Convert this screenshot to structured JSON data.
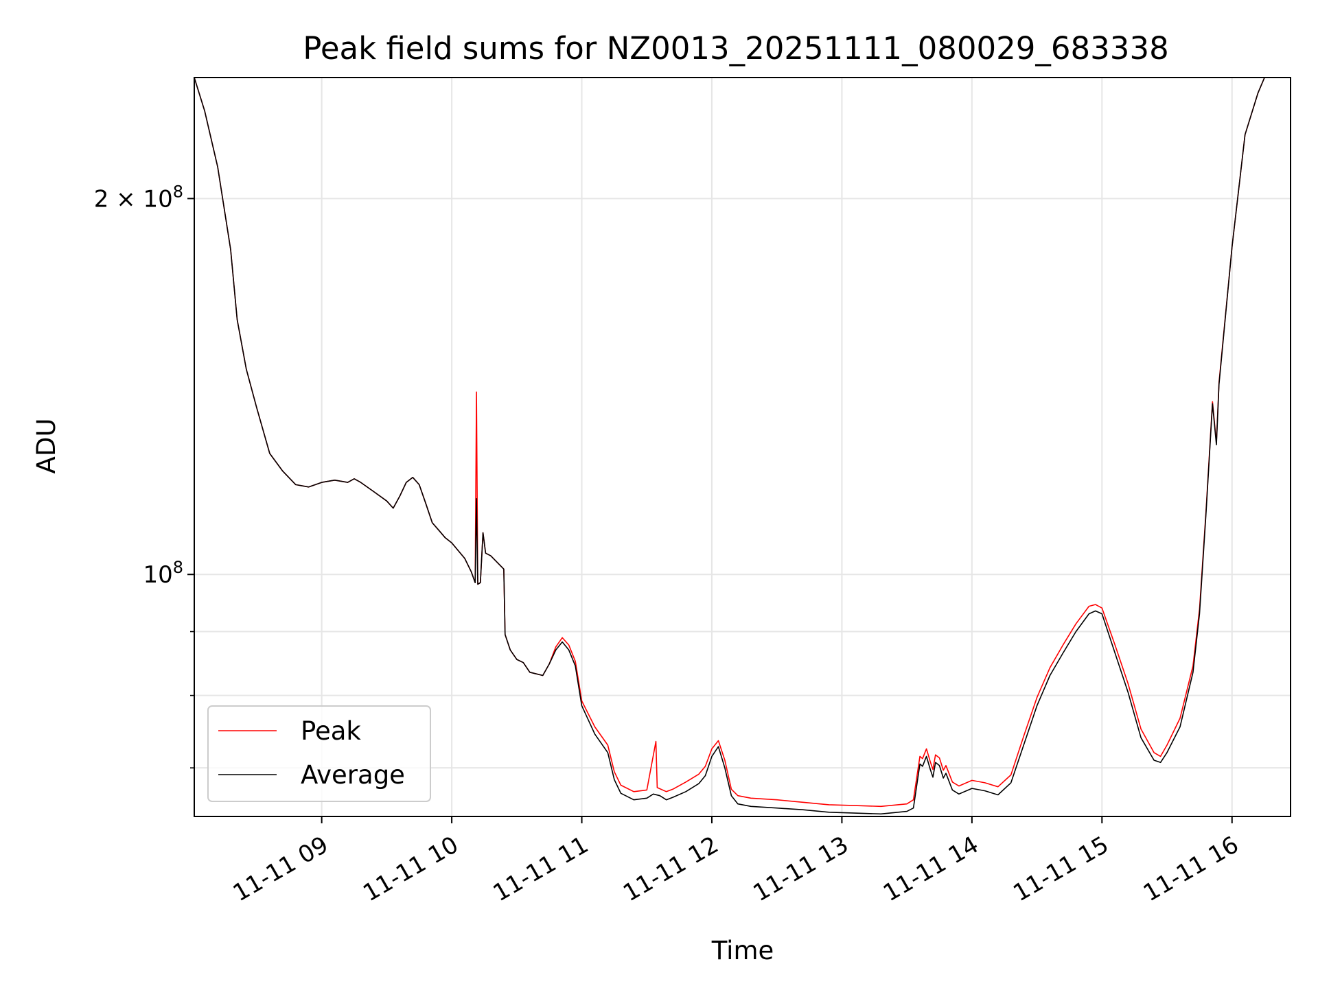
{
  "chart_data": {
    "type": "line",
    "title": "Peak field sums for NZ0013_20251111_080029_683338",
    "xlabel": "Time",
    "ylabel": "ADU",
    "yscale": "log",
    "ylim": [
      64000000,
      250000000
    ],
    "xlim": [
      8.02,
      16.45
    ],
    "grid": true,
    "legend_position": "lower-left",
    "x_ticks": [
      {
        "value": 9,
        "label": "11-11 09"
      },
      {
        "value": 10,
        "label": "11-11 10"
      },
      {
        "value": 11,
        "label": "11-11 11"
      },
      {
        "value": 12,
        "label": "11-11 12"
      },
      {
        "value": 13,
        "label": "11-11 13"
      },
      {
        "value": 14,
        "label": "11-11 14"
      },
      {
        "value": 15,
        "label": "11-11 15"
      },
      {
        "value": 16,
        "label": "11-11 16"
      }
    ],
    "y_ticks": [
      {
        "value": 100000000,
        "base": "10",
        "exp": "8",
        "mult": ""
      },
      {
        "value": 200000000,
        "base": "10",
        "exp": "8",
        "mult": "2 × "
      }
    ],
    "y_minor_ticks": [
      70000000,
      80000000,
      90000000
    ],
    "series": [
      {
        "name": "Average",
        "color": "#000000",
        "points": [
          [
            8.02,
            250000000
          ],
          [
            8.1,
            235000000
          ],
          [
            8.2,
            212000000
          ],
          [
            8.3,
            182000000
          ],
          [
            8.35,
            160000000
          ],
          [
            8.42,
            146000000
          ],
          [
            8.5,
            136000000
          ],
          [
            8.6,
            125000000
          ],
          [
            8.7,
            121000000
          ],
          [
            8.8,
            118000000
          ],
          [
            8.9,
            117500000
          ],
          [
            9.0,
            118500000
          ],
          [
            9.1,
            119000000
          ],
          [
            9.2,
            118500000
          ],
          [
            9.25,
            119300000
          ],
          [
            9.3,
            118500000
          ],
          [
            9.4,
            116500000
          ],
          [
            9.5,
            114500000
          ],
          [
            9.55,
            113000000
          ],
          [
            9.6,
            115500000
          ],
          [
            9.65,
            118500000
          ],
          [
            9.7,
            119600000
          ],
          [
            9.75,
            118000000
          ],
          [
            9.8,
            114000000
          ],
          [
            9.85,
            110000000
          ],
          [
            9.9,
            108500000
          ],
          [
            9.95,
            107000000
          ],
          [
            10.0,
            106000000
          ],
          [
            10.1,
            103000000
          ],
          [
            10.15,
            100500000
          ],
          [
            10.18,
            98500000
          ],
          [
            10.19,
            115000000
          ],
          [
            10.2,
            98200000
          ],
          [
            10.22,
            98500000
          ],
          [
            10.24,
            108000000
          ],
          [
            10.26,
            104000000
          ],
          [
            10.3,
            103500000
          ],
          [
            10.4,
            101000000
          ],
          [
            10.41,
            89500000
          ],
          [
            10.45,
            87000000
          ],
          [
            10.5,
            85500000
          ],
          [
            10.55,
            85000000
          ],
          [
            10.6,
            83500000
          ],
          [
            10.7,
            83000000
          ],
          [
            10.75,
            84800000
          ],
          [
            10.8,
            87000000
          ],
          [
            10.85,
            88300000
          ],
          [
            10.9,
            87000000
          ],
          [
            10.95,
            84500000
          ],
          [
            11.0,
            78500000
          ],
          [
            11.1,
            74500000
          ],
          [
            11.2,
            72000000
          ],
          [
            11.25,
            68500000
          ],
          [
            11.3,
            66800000
          ],
          [
            11.4,
            66000000
          ],
          [
            11.5,
            66200000
          ],
          [
            11.55,
            66700000
          ],
          [
            11.6,
            66500000
          ],
          [
            11.65,
            66000000
          ],
          [
            11.7,
            66300000
          ],
          [
            11.8,
            67000000
          ],
          [
            11.9,
            68000000
          ],
          [
            11.95,
            69000000
          ],
          [
            12.0,
            71500000
          ],
          [
            12.05,
            72800000
          ],
          [
            12.1,
            70000000
          ],
          [
            12.15,
            66500000
          ],
          [
            12.2,
            65500000
          ],
          [
            12.3,
            65200000
          ],
          [
            12.5,
            65000000
          ],
          [
            12.7,
            64800000
          ],
          [
            12.9,
            64500000
          ],
          [
            13.1,
            64400000
          ],
          [
            13.3,
            64300000
          ],
          [
            13.5,
            64600000
          ],
          [
            13.55,
            65000000
          ],
          [
            13.6,
            70500000
          ],
          [
            13.62,
            70200000
          ],
          [
            13.65,
            71500000
          ],
          [
            13.68,
            69800000
          ],
          [
            13.7,
            68800000
          ],
          [
            13.72,
            70700000
          ],
          [
            13.75,
            70300000
          ],
          [
            13.78,
            68700000
          ],
          [
            13.8,
            69300000
          ],
          [
            13.85,
            67200000
          ],
          [
            13.9,
            66700000
          ],
          [
            14.0,
            67400000
          ],
          [
            14.1,
            67100000
          ],
          [
            14.2,
            66600000
          ],
          [
            14.3,
            68100000
          ],
          [
            14.4,
            73100000
          ],
          [
            14.5,
            78500000
          ],
          [
            14.6,
            83000000
          ],
          [
            14.7,
            86500000
          ],
          [
            14.8,
            90000000
          ],
          [
            14.9,
            93000000
          ],
          [
            14.95,
            93500000
          ],
          [
            15.0,
            93000000
          ],
          [
            15.1,
            86500000
          ],
          [
            15.2,
            80500000
          ],
          [
            15.3,
            74000000
          ],
          [
            15.4,
            71000000
          ],
          [
            15.45,
            70700000
          ],
          [
            15.5,
            72000000
          ],
          [
            15.6,
            75500000
          ],
          [
            15.7,
            83500000
          ],
          [
            15.75,
            93000000
          ],
          [
            15.8,
            112000000
          ],
          [
            15.85,
            137000000
          ],
          [
            15.88,
            127000000
          ],
          [
            15.9,
            142000000
          ],
          [
            16.0,
            183000000
          ],
          [
            16.1,
            225000000
          ],
          [
            16.2,
            243000000
          ],
          [
            16.25,
            250000000
          ]
        ]
      },
      {
        "name": "Peak",
        "color": "#ff0000",
        "points": [
          [
            8.02,
            250000000
          ],
          [
            8.1,
            235000000
          ],
          [
            8.2,
            212000000
          ],
          [
            8.3,
            182000000
          ],
          [
            8.35,
            160000000
          ],
          [
            8.42,
            146000000
          ],
          [
            8.5,
            136000000
          ],
          [
            8.6,
            125000000
          ],
          [
            8.7,
            121000000
          ],
          [
            8.8,
            118000000
          ],
          [
            8.9,
            117500000
          ],
          [
            9.0,
            118500000
          ],
          [
            9.1,
            119000000
          ],
          [
            9.2,
            118500000
          ],
          [
            9.25,
            119300000
          ],
          [
            9.3,
            118500000
          ],
          [
            9.4,
            116500000
          ],
          [
            9.5,
            114500000
          ],
          [
            9.55,
            113000000
          ],
          [
            9.6,
            115500000
          ],
          [
            9.65,
            118500000
          ],
          [
            9.7,
            119600000
          ],
          [
            9.75,
            118000000
          ],
          [
            9.8,
            114000000
          ],
          [
            9.85,
            110000000
          ],
          [
            9.9,
            108500000
          ],
          [
            9.95,
            107000000
          ],
          [
            10.0,
            106000000
          ],
          [
            10.1,
            103000000
          ],
          [
            10.15,
            100500000
          ],
          [
            10.18,
            98500000
          ],
          [
            10.19,
            140000000
          ],
          [
            10.2,
            98200000
          ],
          [
            10.22,
            98500000
          ],
          [
            10.24,
            108000000
          ],
          [
            10.26,
            104000000
          ],
          [
            10.3,
            103500000
          ],
          [
            10.4,
            101000000
          ],
          [
            10.41,
            89500000
          ],
          [
            10.45,
            87000000
          ],
          [
            10.5,
            85500000
          ],
          [
            10.55,
            85000000
          ],
          [
            10.6,
            83500000
          ],
          [
            10.7,
            83000000
          ],
          [
            10.75,
            84800000
          ],
          [
            10.8,
            87500000
          ],
          [
            10.85,
            89000000
          ],
          [
            10.9,
            87800000
          ],
          [
            10.95,
            85200000
          ],
          [
            11.0,
            79200000
          ],
          [
            11.1,
            75500000
          ],
          [
            11.2,
            73000000
          ],
          [
            11.25,
            69500000
          ],
          [
            11.3,
            67800000
          ],
          [
            11.4,
            67000000
          ],
          [
            11.5,
            67200000
          ],
          [
            11.57,
            73500000
          ],
          [
            11.58,
            67500000
          ],
          [
            11.65,
            67000000
          ],
          [
            11.7,
            67300000
          ],
          [
            11.8,
            68200000
          ],
          [
            11.9,
            69200000
          ],
          [
            11.95,
            70200000
          ],
          [
            12.0,
            72500000
          ],
          [
            12.05,
            73600000
          ],
          [
            12.1,
            71000000
          ],
          [
            12.15,
            67300000
          ],
          [
            12.2,
            66500000
          ],
          [
            12.3,
            66200000
          ],
          [
            12.5,
            66000000
          ],
          [
            12.7,
            65700000
          ],
          [
            12.9,
            65400000
          ],
          [
            13.1,
            65300000
          ],
          [
            13.3,
            65200000
          ],
          [
            13.5,
            65500000
          ],
          [
            13.55,
            66000000
          ],
          [
            13.6,
            71500000
          ],
          [
            13.62,
            71200000
          ],
          [
            13.65,
            72500000
          ],
          [
            13.68,
            70800000
          ],
          [
            13.7,
            69800000
          ],
          [
            13.72,
            71700000
          ],
          [
            13.75,
            71300000
          ],
          [
            13.78,
            69700000
          ],
          [
            13.8,
            70300000
          ],
          [
            13.85,
            68200000
          ],
          [
            13.9,
            67700000
          ],
          [
            14.0,
            68400000
          ],
          [
            14.1,
            68100000
          ],
          [
            14.2,
            67600000
          ],
          [
            14.3,
            69100000
          ],
          [
            14.4,
            74300000
          ],
          [
            14.5,
            79700000
          ],
          [
            14.6,
            84200000
          ],
          [
            14.7,
            87800000
          ],
          [
            14.8,
            91300000
          ],
          [
            14.9,
            94300000
          ],
          [
            14.95,
            94600000
          ],
          [
            15.0,
            94000000
          ],
          [
            15.1,
            87800000
          ],
          [
            15.2,
            81800000
          ],
          [
            15.3,
            75200000
          ],
          [
            15.4,
            72000000
          ],
          [
            15.45,
            71500000
          ],
          [
            15.5,
            73000000
          ],
          [
            15.6,
            76700000
          ],
          [
            15.7,
            84500000
          ],
          [
            15.75,
            93800000
          ],
          [
            15.8,
            112500000
          ],
          [
            15.85,
            137500000
          ],
          [
            15.88,
            127500000
          ],
          [
            15.9,
            142500000
          ],
          [
            16.0,
            183000000
          ],
          [
            16.1,
            225000000
          ],
          [
            16.2,
            243000000
          ],
          [
            16.25,
            250000000
          ]
        ]
      }
    ],
    "legend": [
      {
        "name": "Peak",
        "color": "#ff0000"
      },
      {
        "name": "Average",
        "color": "#000000"
      }
    ]
  }
}
